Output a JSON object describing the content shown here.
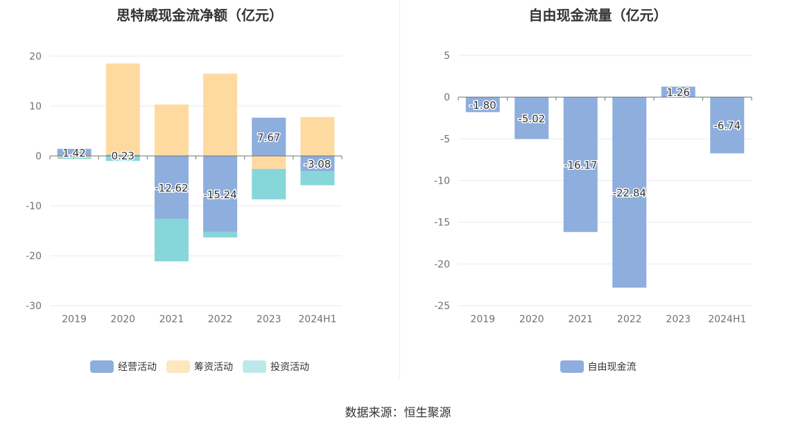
{
  "colors": {
    "operating": "#8eaedd",
    "financing": "#fedaa1",
    "investing": "#86d6da",
    "free_cash_flow": "#8eaedd",
    "operating_legend": "#8eaedd",
    "financing_legend": "#fee6bf",
    "investing_legend": "#bde8ea"
  },
  "source": "数据来源：恒生聚源",
  "chart_data": [
    {
      "type": "bar",
      "stacked": true,
      "title": "思特威现金流净额（亿元）",
      "categories": [
        "2019",
        "2020",
        "2021",
        "2022",
        "2023",
        "2024H1"
      ],
      "ylim": [
        -30,
        20
      ],
      "yticks": [
        20,
        10,
        0,
        -10,
        -20,
        -30
      ],
      "grid": true,
      "legend": "bottom-center",
      "series": [
        {
          "name": "经营活动",
          "values": [
            1.42,
            0.23,
            -12.62,
            -15.24,
            7.67,
            -3.08
          ],
          "labeled": true
        },
        {
          "name": "筹资活动",
          "values": [
            -0.3,
            18.3,
            10.3,
            16.5,
            -2.6,
            7.8
          ],
          "labeled": false
        },
        {
          "name": "投资活动",
          "values": [
            -0.3,
            -1.0,
            -8.5,
            -1.1,
            -6.1,
            -2.8
          ],
          "labeled": false
        }
      ]
    },
    {
      "type": "bar",
      "title": "自由现金流量（亿元）",
      "categories": [
        "2019",
        "2020",
        "2021",
        "2022",
        "2023",
        "2024H1"
      ],
      "ylim": [
        -25,
        5
      ],
      "yticks": [
        5,
        0,
        -5,
        -10,
        -15,
        -20,
        -25
      ],
      "grid": true,
      "legend": "bottom-center",
      "series": [
        {
          "name": "自由现金流",
          "values": [
            -1.8,
            -5.02,
            -16.17,
            -22.84,
            1.26,
            -6.74
          ],
          "labeled": true
        }
      ]
    }
  ]
}
